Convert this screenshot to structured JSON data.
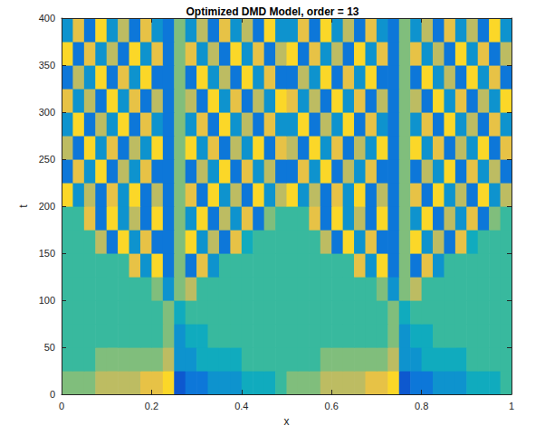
{
  "chart_data": {
    "type": "heatmap",
    "title": "Optimized DMD Model, order = 13",
    "x_label": "x",
    "y_label": "t",
    "x": [
      0.0125,
      0.0375,
      0.0625,
      0.0875,
      0.1125,
      0.1375,
      0.1625,
      0.1875,
      0.2125,
      0.2375,
      0.2625,
      0.2875,
      0.3125,
      0.3375,
      0.3625,
      0.3875,
      0.4125,
      0.4375,
      0.4625,
      0.4875,
      0.5125,
      0.5375,
      0.5625,
      0.5875,
      0.6125,
      0.6375,
      0.6625,
      0.6875,
      0.7125,
      0.7375,
      0.7625,
      0.7875,
      0.8125,
      0.8375,
      0.8625,
      0.8875,
      0.9125,
      0.9375,
      0.9625,
      0.9875
    ],
    "y": [
      12.5,
      37.5,
      62.5,
      87.5,
      112.5,
      137.5,
      162.5,
      187.5,
      212.5,
      237.5,
      262.5,
      287.5,
      312.5,
      337.5,
      362.5,
      387.5
    ],
    "z": [
      [
        6,
        6,
        6,
        7,
        7,
        7,
        7,
        8,
        8,
        9,
        1,
        2,
        2,
        3,
        3,
        3,
        4,
        4,
        4,
        5,
        6,
        6,
        6,
        7,
        7,
        7,
        7,
        8,
        8,
        9,
        1,
        2,
        2,
        3,
        3,
        3,
        4,
        4,
        4,
        5
      ],
      [
        5,
        5,
        5,
        6,
        6,
        6,
        6,
        6,
        6,
        7,
        3,
        3,
        4,
        4,
        4,
        4,
        5,
        5,
        5,
        5,
        5,
        5,
        5,
        6,
        6,
        6,
        6,
        6,
        6,
        7,
        3,
        3,
        4,
        4,
        4,
        4,
        5,
        5,
        5,
        5
      ],
      [
        5,
        5,
        5,
        5,
        5,
        5,
        5,
        5,
        5,
        6,
        3,
        4,
        4,
        5,
        5,
        5,
        5,
        5,
        5,
        5,
        5,
        5,
        5,
        5,
        5,
        5,
        5,
        5,
        5,
        6,
        3,
        4,
        4,
        5,
        5,
        5,
        5,
        5,
        5,
        5
      ],
      [
        5,
        5,
        5,
        5,
        5,
        5,
        5,
        5,
        5,
        6,
        4,
        5,
        5,
        5,
        5,
        5,
        5,
        5,
        5,
        5,
        5,
        5,
        5,
        5,
        5,
        5,
        5,
        5,
        5,
        6,
        4,
        5,
        5,
        5,
        5,
        5,
        5,
        5,
        5,
        5
      ],
      [
        5,
        5,
        5,
        5,
        5,
        5,
        5,
        5,
        6,
        3,
        6,
        7,
        5,
        5,
        5,
        5,
        5,
        5,
        5,
        5,
        5,
        5,
        5,
        5,
        5,
        5,
        5,
        5,
        6,
        3,
        6,
        7,
        5,
        5,
        5,
        5,
        5,
        5,
        5,
        5
      ],
      [
        5,
        5,
        5,
        5,
        5,
        5,
        8,
        3,
        9,
        2,
        6,
        2,
        8,
        3,
        5,
        5,
        5,
        5,
        5,
        5,
        5,
        5,
        5,
        5,
        5,
        5,
        8,
        3,
        9,
        2,
        6,
        2,
        8,
        3,
        5,
        5,
        5,
        5,
        5,
        5
      ],
      [
        5,
        5,
        5,
        7,
        2,
        9,
        3,
        8,
        2,
        2,
        6,
        9,
        3,
        7,
        2,
        8,
        4,
        5,
        5,
        5,
        5,
        5,
        5,
        7,
        2,
        9,
        3,
        8,
        2,
        2,
        6,
        9,
        3,
        7,
        2,
        8,
        4,
        5,
        5,
        5
      ],
      [
        5,
        5,
        8,
        2,
        9,
        3,
        7,
        2,
        9,
        2,
        6,
        3,
        9,
        2,
        7,
        3,
        8,
        2,
        6,
        5,
        5,
        5,
        8,
        2,
        9,
        3,
        7,
        2,
        9,
        2,
        6,
        3,
        9,
        2,
        7,
        3,
        8,
        2,
        6,
        5
      ],
      [
        9,
        3,
        7,
        2,
        8,
        3,
        9,
        2,
        7,
        2,
        6,
        8,
        2,
        9,
        3,
        7,
        2,
        9,
        3,
        7,
        9,
        3,
        7,
        2,
        8,
        3,
        9,
        2,
        7,
        2,
        6,
        8,
        2,
        9,
        3,
        7,
        2,
        9,
        3,
        7
      ],
      [
        2,
        8,
        3,
        9,
        2,
        7,
        3,
        8,
        2,
        2,
        6,
        2,
        7,
        3,
        9,
        2,
        8,
        3,
        7,
        2,
        2,
        8,
        3,
        9,
        2,
        7,
        3,
        8,
        2,
        2,
        6,
        2,
        7,
        3,
        9,
        2,
        8,
        3,
        7,
        2
      ],
      [
        7,
        2,
        9,
        3,
        8,
        2,
        7,
        3,
        9,
        2,
        6,
        9,
        3,
        8,
        2,
        7,
        3,
        9,
        2,
        8,
        7,
        2,
        9,
        3,
        8,
        2,
        7,
        3,
        9,
        2,
        6,
        9,
        3,
        8,
        2,
        7,
        3,
        9,
        2,
        8
      ],
      [
        3,
        9,
        2,
        7,
        3,
        9,
        2,
        8,
        3,
        2,
        6,
        3,
        8,
        2,
        9,
        3,
        7,
        2,
        8,
        3,
        3,
        9,
        2,
        7,
        3,
        9,
        2,
        8,
        3,
        2,
        6,
        3,
        8,
        2,
        9,
        3,
        7,
        2,
        8,
        3
      ],
      [
        8,
        3,
        7,
        2,
        9,
        3,
        8,
        2,
        7,
        2,
        6,
        7,
        2,
        9,
        3,
        8,
        2,
        7,
        3,
        9,
        8,
        3,
        7,
        2,
        9,
        3,
        8,
        2,
        7,
        2,
        6,
        7,
        2,
        9,
        3,
        8,
        2,
        7,
        3,
        9
      ],
      [
        2,
        7,
        3,
        9,
        2,
        8,
        3,
        9,
        2,
        2,
        6,
        2,
        9,
        3,
        7,
        2,
        9,
        3,
        8,
        2,
        2,
        7,
        3,
        9,
        2,
        8,
        3,
        9,
        2,
        2,
        6,
        2,
        9,
        3,
        7,
        2,
        9,
        3,
        8,
        2
      ],
      [
        9,
        2,
        8,
        3,
        7,
        2,
        9,
        3,
        8,
        2,
        6,
        8,
        3,
        7,
        2,
        9,
        3,
        8,
        2,
        7,
        9,
        2,
        8,
        3,
        7,
        2,
        9,
        3,
        8,
        2,
        6,
        8,
        3,
        7,
        2,
        9,
        3,
        8,
        2,
        7
      ],
      [
        3,
        8,
        2,
        9,
        3,
        7,
        2,
        8,
        3,
        2,
        6,
        3,
        7,
        2,
        8,
        3,
        7,
        2,
        9,
        3,
        3,
        8,
        2,
        9,
        3,
        7,
        2,
        8,
        3,
        2,
        6,
        3,
        7,
        2,
        8,
        3,
        7,
        2,
        9,
        3
      ]
    ],
    "zlim": [
      0,
      10
    ],
    "xlim": [
      0,
      1
    ],
    "xticks": [
      0,
      0.2,
      0.4,
      0.6,
      0.8,
      1
    ],
    "ylim": [
      0,
      400
    ],
    "yticks": [
      0,
      50,
      100,
      150,
      200,
      250,
      300,
      350,
      400
    ],
    "grid": false
  }
}
